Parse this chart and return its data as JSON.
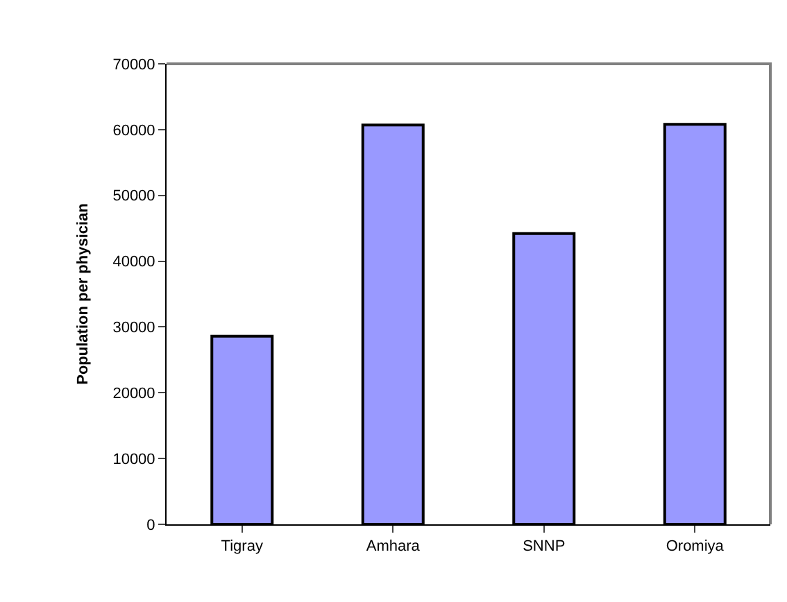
{
  "chart_data": {
    "type": "bar",
    "ylabel": "Population per physician",
    "categories": [
      "Tigray",
      "Amhara",
      "SNNP",
      "Oromiya"
    ],
    "values": [
      28600,
      60700,
      44200,
      60800
    ],
    "color": "#9999ff",
    "ylim": [
      0,
      70000
    ],
    "yticks": [
      0,
      10000,
      20000,
      30000,
      40000,
      50000,
      60000,
      70000
    ]
  }
}
